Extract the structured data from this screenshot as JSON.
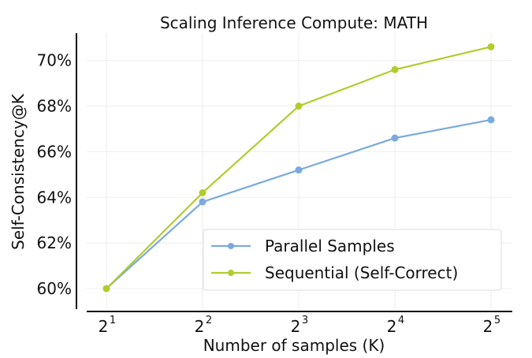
{
  "chart_data": {
    "type": "line",
    "title": "Scaling Inference Compute: MATH",
    "xlabel": "Number of samples (K)",
    "ylabel": "Self-Consistency@K",
    "x": [
      2,
      4,
      8,
      16,
      32
    ],
    "x_scale": "log2",
    "x_tick_labels": [
      {
        "base": "2",
        "exp": "1"
      },
      {
        "base": "2",
        "exp": "2"
      },
      {
        "base": "2",
        "exp": "3"
      },
      {
        "base": "2",
        "exp": "4"
      },
      {
        "base": "2",
        "exp": "5"
      }
    ],
    "y_ticks": [
      60,
      62,
      64,
      66,
      68,
      70
    ],
    "y_tick_labels": [
      "60%",
      "62%",
      "64%",
      "66%",
      "68%",
      "70%"
    ],
    "ylim": [
      59.1,
      71.2
    ],
    "grid": true,
    "legend_position": "bottom-right",
    "series": [
      {
        "name": "Parallel Samples",
        "color": "#7aaadc",
        "values": [
          60.0,
          63.8,
          65.2,
          66.6,
          67.4
        ]
      },
      {
        "name": "Sequential (Self-Correct)",
        "color": "#b2cc2e",
        "values": [
          60.0,
          64.2,
          68.0,
          69.6,
          70.6
        ]
      }
    ]
  }
}
